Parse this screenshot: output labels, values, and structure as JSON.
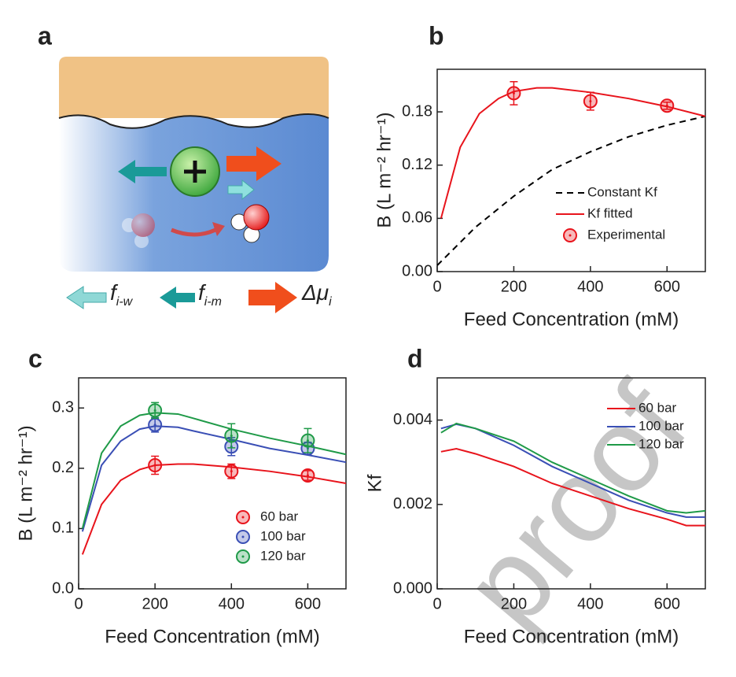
{
  "panel_a": {
    "label": "a",
    "arrows": [
      {
        "symbol": "f",
        "subscript": "i-w"
      },
      {
        "symbol": "f",
        "subscript": "i-m"
      },
      {
        "symbol": "Δμ",
        "subscript": "i"
      }
    ]
  },
  "watermark": "proof",
  "chart_data": [
    {
      "type": "line",
      "panel": "b",
      "xlabel": "Feed Concentration (mM)",
      "ylabel": "B (L m⁻² hr⁻¹)",
      "xlim": [
        0,
        700
      ],
      "xticks": [
        0,
        200,
        400,
        600
      ],
      "ylim": [
        0,
        0.228
      ],
      "yticks": [
        {
          "value": 0,
          "label": "0.00"
        },
        0.06,
        0.12,
        0.18
      ],
      "series": [
        {
          "name": "Constant Kf",
          "color": "#000000",
          "dash": true,
          "x": [
            0,
            100,
            200,
            300,
            400,
            500,
            600,
            700
          ],
          "values": [
            0.007,
            0.05,
            0.085,
            0.115,
            0.135,
            0.152,
            0.165,
            0.175
          ]
        },
        {
          "name": "Kf fitted",
          "color": "#e8141c",
          "x": [
            10,
            60,
            110,
            160,
            200,
            260,
            300,
            400,
            500,
            600,
            700
          ],
          "values": [
            0.06,
            0.14,
            0.178,
            0.195,
            0.203,
            0.207,
            0.207,
            0.202,
            0.195,
            0.186,
            0.175
          ]
        },
        {
          "name": "Experimental",
          "color": "#e8141c",
          "x": [
            200,
            400,
            600
          ],
          "values": [
            0.201,
            0.192,
            0.187
          ],
          "errors": [
            0.013,
            0.01,
            0.004
          ]
        }
      ]
    },
    {
      "type": "line",
      "panel": "c",
      "xlabel": "Feed Concentration (mM)",
      "ylabel": "B (L m⁻² hr⁻¹)",
      "xlim": [
        0,
        700
      ],
      "xticks": [
        0,
        200,
        400,
        600
      ],
      "ylim": [
        0,
        0.35
      ],
      "yticks": [
        {
          "value": 0,
          "label": "0.0"
        },
        0.1,
        0.2,
        0.3
      ],
      "series": [
        {
          "name": "60 bar",
          "color": "#e8141c",
          "x": [
            200,
            400,
            600
          ],
          "values": [
            0.205,
            0.195,
            0.188
          ],
          "errors": [
            0.015,
            0.012,
            0.008
          ],
          "fit_x": [
            10,
            60,
            110,
            160,
            200,
            260,
            300,
            400,
            500,
            600,
            700
          ],
          "fit": [
            0.057,
            0.14,
            0.18,
            0.198,
            0.205,
            0.207,
            0.207,
            0.202,
            0.195,
            0.186,
            0.175
          ]
        },
        {
          "name": "100 bar",
          "color": "#3a4fb5",
          "x": [
            200,
            400,
            600
          ],
          "values": [
            0.272,
            0.236,
            0.233
          ],
          "errors": [
            0.012,
            0.015,
            0.01
          ],
          "fit_x": [
            10,
            60,
            110,
            160,
            200,
            260,
            300,
            400,
            500,
            600,
            700
          ],
          "fit": [
            0.095,
            0.205,
            0.245,
            0.265,
            0.27,
            0.268,
            0.262,
            0.248,
            0.233,
            0.222,
            0.21
          ]
        },
        {
          "name": "120 bar",
          "color": "#1f9a48",
          "x": [
            200,
            400,
            600
          ],
          "values": [
            0.296,
            0.254,
            0.246
          ],
          "errors": [
            0.013,
            0.02,
            0.02
          ],
          "fit_x": [
            10,
            60,
            110,
            160,
            200,
            260,
            300,
            400,
            500,
            600,
            700
          ],
          "fit": [
            0.1,
            0.225,
            0.27,
            0.288,
            0.292,
            0.29,
            0.283,
            0.265,
            0.25,
            0.237,
            0.223
          ]
        }
      ]
    },
    {
      "type": "line",
      "panel": "d",
      "xlabel": "Feed Concentration (mM)",
      "ylabel": "Kf",
      "xlim": [
        0,
        700
      ],
      "xticks": [
        0,
        200,
        400,
        600
      ],
      "ylim": [
        0,
        0.005
      ],
      "yticks": [
        {
          "value": 0,
          "label": "0.000"
        },
        {
          "value": 0.002,
          "label": "0.002"
        },
        {
          "value": 0.004,
          "label": "0.004"
        }
      ],
      "series": [
        {
          "name": "60 bar",
          "color": "#e8141c",
          "x": [
            10,
            50,
            100,
            200,
            300,
            400,
            500,
            600,
            650,
            700
          ],
          "values": [
            0.00325,
            0.00332,
            0.0032,
            0.0029,
            0.0025,
            0.0022,
            0.0019,
            0.00165,
            0.0015,
            0.0015
          ]
        },
        {
          "name": "100 bar",
          "color": "#3a4fb5",
          "x": [
            10,
            50,
            100,
            200,
            300,
            400,
            500,
            600,
            650,
            700
          ],
          "values": [
            0.0038,
            0.0039,
            0.0038,
            0.0034,
            0.0029,
            0.0025,
            0.0021,
            0.0018,
            0.0017,
            0.0017
          ]
        },
        {
          "name": "120 bar",
          "color": "#1f9a48",
          "x": [
            10,
            50,
            100,
            200,
            300,
            400,
            500,
            600,
            650,
            700
          ],
          "values": [
            0.0037,
            0.00392,
            0.0038,
            0.0035,
            0.003,
            0.0026,
            0.0022,
            0.00185,
            0.0018,
            0.00185
          ]
        }
      ]
    }
  ]
}
